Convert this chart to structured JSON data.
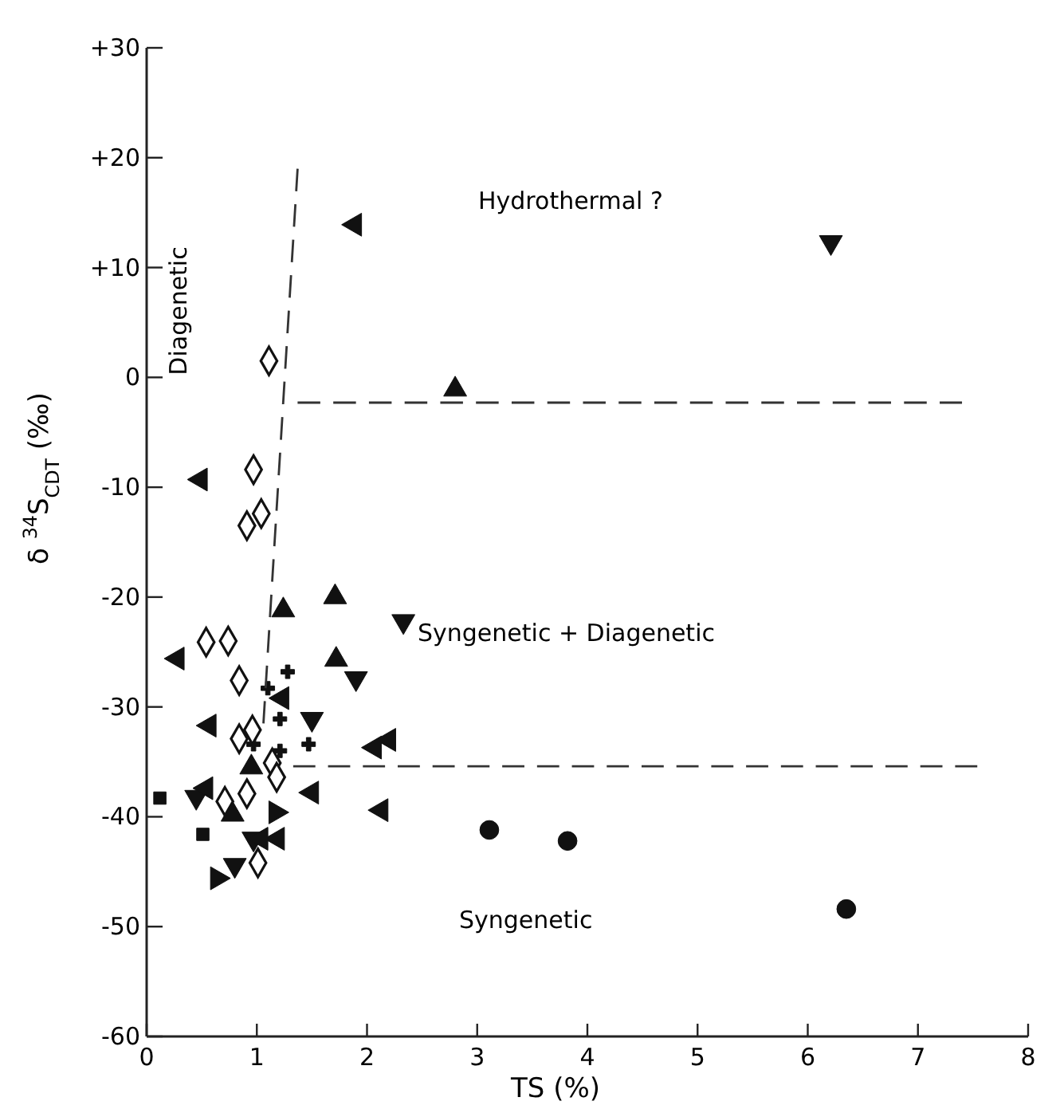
{
  "chart_data": {
    "type": "scatter",
    "xlabel": "TS (%)",
    "ylabel": "δ $^{34}$S$_{CDT}$ (‰)",
    "xlim": [
      0,
      8
    ],
    "xticks": [
      0,
      1,
      2,
      3,
      4,
      5,
      6,
      7,
      8
    ],
    "ylim": [
      -60,
      30
    ],
    "yticks": [
      -60,
      -50,
      -40,
      -30,
      -20,
      -10,
      0,
      {
        "value": 10,
        "label": "+10"
      },
      {
        "value": 20,
        "label": "+20"
      },
      {
        "value": 30,
        "label": "+30"
      }
    ],
    "grid": false,
    "annotations": [
      "Hydrothermal ?",
      "Syngenetic + Diagenetic",
      "Syngenetic",
      "Diagenetic"
    ],
    "series": [
      {
        "marker": "triangle",
        "color": "#111111",
        "x": [
          1.71,
          1.24,
          1.72,
          0.95,
          0.78,
          2.8
        ],
        "values": [
          -20,
          -21.2,
          -25.7,
          -35.5,
          -39.8,
          -1.1
        ]
      },
      {
        "marker": "triangle-down",
        "color": "#111111",
        "x": [
          2.33,
          1.9,
          1.5,
          0.45,
          0.8,
          0.97,
          6.21
        ],
        "values": [
          -22.2,
          -27.4,
          -31.1,
          -38.2,
          -44.4,
          -42,
          12.3
        ]
      },
      {
        "marker": "triangle-right",
        "color": "#111111",
        "x": [
          0.64,
          1.17
        ],
        "values": [
          -45.6,
          -39.6
        ]
      },
      {
        "marker": "triangle-left",
        "color": "#111111",
        "x": [
          0.28,
          0.57,
          1.23,
          2.2,
          2.07,
          1.5,
          2.13,
          0.54,
          1.19,
          1.04,
          0.49,
          1.89
        ],
        "values": [
          -25.6,
          -31.7,
          -29.2,
          -33,
          -33.7,
          -37.8,
          -39.4,
          -37.4,
          -42,
          -42,
          -9.3,
          13.9
        ]
      },
      {
        "marker": "cross",
        "color": "#111111",
        "x": [
          1.28,
          1.1,
          1.21,
          1.47,
          0.97,
          1.21
        ],
        "values": [
          -26.8,
          -28.3,
          -31.1,
          -33.4,
          -33.4,
          -34
        ]
      },
      {
        "marker": "diamond",
        "color": "#111111",
        "x": [
          0.54,
          0.74,
          0.84,
          0.96,
          0.84,
          1.14,
          1.18,
          0.91,
          0.71,
          1.01,
          1.11,
          0.97,
          1.04,
          0.91
        ],
        "values": [
          -24.1,
          -24,
          -27.6,
          -32.1,
          -32.9,
          -35.1,
          -36.4,
          -37.9,
          -38.6,
          -44.2,
          1.5,
          -8.4,
          -12.4,
          -13.5
        ]
      },
      {
        "marker": "square",
        "color": "#111111",
        "x": [
          0.12,
          0.51
        ],
        "values": [
          -38.3,
          -41.6
        ]
      },
      {
        "marker": "circle",
        "color": "#111111",
        "x": [
          3.11,
          3.82,
          6.35
        ],
        "values": [
          -41.2,
          -42.2,
          -48.4
        ]
      },
      {
        "type": "line",
        "line_style": "dashed",
        "color": "#333333",
        "x": [
          1.37,
          1.06
        ],
        "values": [
          19,
          -31.5
        ]
      },
      {
        "type": "line",
        "line_style": "dashed",
        "color": "#333333",
        "x": [
          1.37,
          7.4
        ],
        "values": [
          -2.3,
          -2.3
        ]
      },
      {
        "type": "line",
        "line_style": "dashed",
        "color": "#333333",
        "x": [
          1.33,
          7.54
        ],
        "values": [
          -35.4,
          -35.4
        ]
      }
    ]
  }
}
